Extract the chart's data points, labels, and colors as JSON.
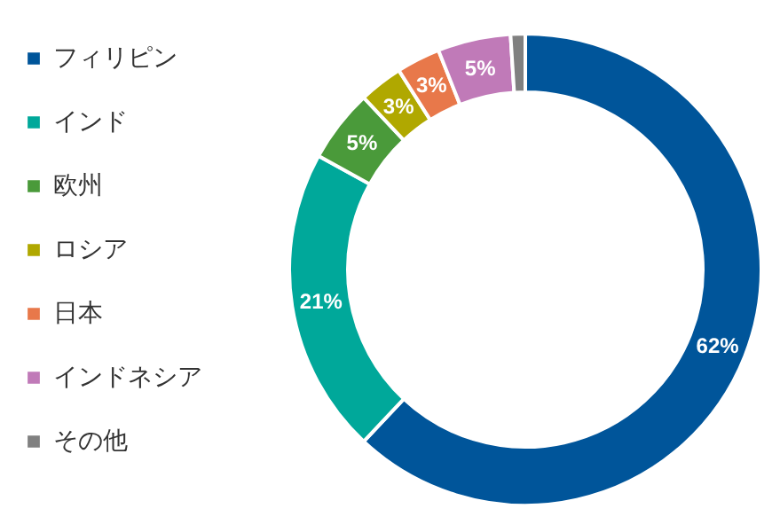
{
  "chart_data": {
    "type": "donut",
    "categories": [
      "フィリピン",
      "インド",
      "欧州",
      "ロシア",
      "日本",
      "インドネシア",
      "その他"
    ],
    "values": [
      62,
      21,
      5,
      3,
      3,
      5,
      1
    ],
    "colors": [
      "#00559a",
      "#00a89a",
      "#4a9a3a",
      "#b0a800",
      "#e8784a",
      "#c07ab8",
      "#808080"
    ],
    "value_labels": [
      "62%",
      "21%",
      "5%",
      "3%",
      "3%",
      "5%",
      null
    ],
    "legend": "left"
  }
}
